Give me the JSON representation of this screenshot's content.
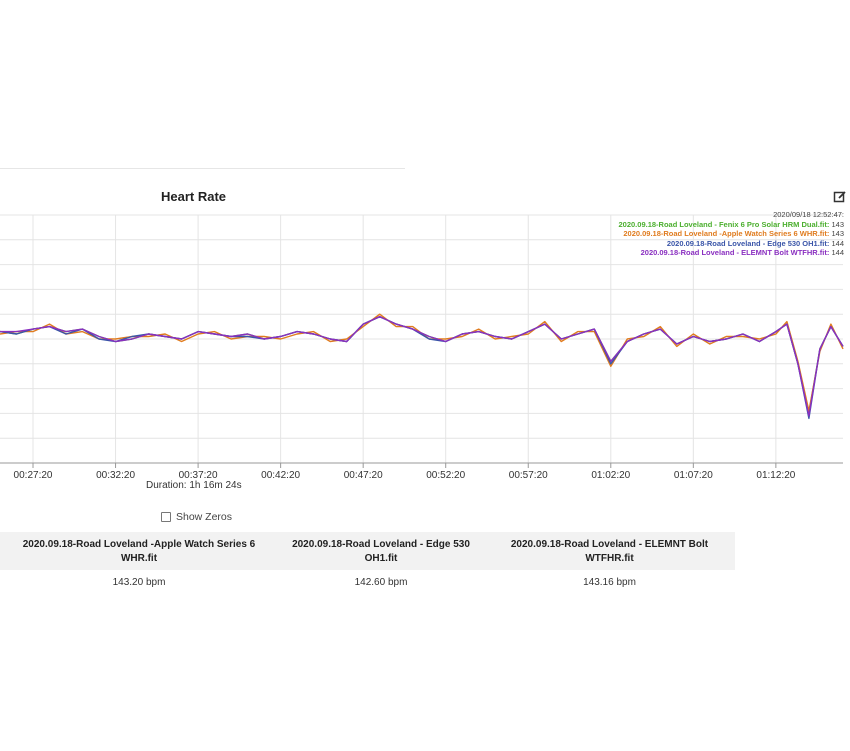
{
  "title": "Heart Rate",
  "legend": {
    "timestamp": "2020/09/18 12:52:47:",
    "entries": [
      {
        "label": "2020.09.18-Road Loveland - Fenix 6 Pro Solar HRM Dual.fit:",
        "value": "143",
        "color": "#4caf2f"
      },
      {
        "label": "2020.09.18-Road Loveland -Apple Watch Series 6 WHR.fit:",
        "value": "143",
        "color": "#e07c1f"
      },
      {
        "label": "2020.09.18-Road Loveland - Edge 530 OH1.fit:",
        "value": "144",
        "color": "#3a55a8"
      },
      {
        "label": "2020.09.18-Road Loveland - ELEMNT Bolt WTFHR.fit:",
        "value": "144",
        "color": "#8a2fc0"
      }
    ]
  },
  "duration": "Duration: 1h 16m 24s",
  "show_zeros": {
    "label": "Show Zeros",
    "checked": false
  },
  "table": {
    "headers": [
      [
        "2020.09.18-Road Loveland -Apple Watch Series 6",
        "WHR.fit"
      ],
      [
        "2020.09.18-Road Loveland - Edge 530",
        "OH1.fit"
      ],
      [
        "2020.09.18-Road Loveland - ELEMNT Bolt",
        "WTFHR.fit"
      ]
    ],
    "values": [
      "143.20 bpm",
      "142.60 bpm",
      "143.16 bpm"
    ]
  },
  "chart_data": {
    "type": "line",
    "title": "Heart Rate",
    "xlabel": "",
    "ylabel": "",
    "x_ticks": [
      "00:27:20",
      "00:32:20",
      "00:37:20",
      "00:42:20",
      "00:47:20",
      "00:52:20",
      "00:57:20",
      "01:02:20",
      "01:07:20",
      "01:12:20"
    ],
    "x_range": [
      "00:25:20",
      "01:16:24"
    ],
    "y_range": [
      90,
      190
    ],
    "grid": true,
    "legend_position": "top-right",
    "x": [
      "00:25:20",
      "00:26:20",
      "00:27:20",
      "00:28:20",
      "00:29:20",
      "00:30:20",
      "00:31:20",
      "00:32:20",
      "00:33:20",
      "00:34:20",
      "00:35:20",
      "00:36:20",
      "00:37:20",
      "00:38:20",
      "00:39:20",
      "00:40:20",
      "00:41:20",
      "00:42:20",
      "00:43:20",
      "00:44:20",
      "00:45:20",
      "00:46:20",
      "00:47:20",
      "00:48:20",
      "00:49:20",
      "00:50:20",
      "00:51:20",
      "00:52:20",
      "00:53:20",
      "00:54:20",
      "00:55:20",
      "00:56:20",
      "00:57:20",
      "00:58:20",
      "00:59:20",
      "01:00:20",
      "01:01:20",
      "01:02:20",
      "01:03:20",
      "01:04:20",
      "01:05:20",
      "01:06:20",
      "01:07:20",
      "01:08:20",
      "01:09:20",
      "01:10:20",
      "01:11:20",
      "01:12:20",
      "01:13:00",
      "01:13:40",
      "01:14:20",
      "01:15:00",
      "01:15:40",
      "01:16:24"
    ],
    "series": [
      {
        "name": "2020.09.18-Road Loveland - Fenix 6 Pro Solar HRM Dual.fit",
        "color": "#4caf2f",
        "values": [
          143,
          142,
          144,
          145,
          143,
          144,
          141,
          139,
          140,
          142,
          141,
          140,
          143,
          142,
          141,
          142,
          140,
          141,
          143,
          142,
          140,
          139,
          146,
          149,
          146,
          144,
          141,
          139,
          142,
          143,
          141,
          140,
          143,
          146,
          140,
          142,
          144,
          131,
          139,
          142,
          144,
          138,
          141,
          139,
          140,
          142,
          139,
          143,
          146,
          130,
          110,
          136,
          145,
          137
        ]
      },
      {
        "name": "2020.09.18-Road Loveland -Apple Watch Series 6 WHR.fit",
        "color": "#e07c1f",
        "values": [
          142,
          143,
          143,
          146,
          142,
          143,
          140,
          140,
          141,
          141,
          142,
          139,
          142,
          143,
          140,
          141,
          141,
          140,
          142,
          143,
          139,
          140,
          145,
          150,
          145,
          145,
          140,
          140,
          141,
          144,
          140,
          141,
          142,
          147,
          139,
          143,
          143,
          129,
          140,
          141,
          145,
          137,
          142,
          138,
          141,
          141,
          140,
          142,
          147,
          131,
          111,
          135,
          146,
          136
        ]
      },
      {
        "name": "2020.09.18-Road Loveland - Edge 530 OH1.fit",
        "color": "#3a55a8",
        "values": [
          143,
          142,
          144,
          145,
          142,
          144,
          140,
          139,
          141,
          142,
          141,
          140,
          143,
          142,
          141,
          141,
          140,
          141,
          143,
          142,
          140,
          139,
          146,
          149,
          146,
          144,
          140,
          139,
          142,
          143,
          141,
          140,
          143,
          146,
          140,
          142,
          144,
          130,
          139,
          142,
          144,
          138,
          141,
          139,
          140,
          142,
          139,
          143,
          146,
          130,
          108,
          136,
          145,
          137
        ]
      },
      {
        "name": "2020.09.18-Road Loveland - ELEMNT Bolt WTFHR.fit",
        "color": "#8a2fc0",
        "values": [
          143,
          143,
          144,
          145,
          143,
          144,
          141,
          139,
          140,
          142,
          141,
          140,
          143,
          142,
          141,
          142,
          140,
          141,
          143,
          142,
          140,
          139,
          146,
          149,
          146,
          144,
          141,
          139,
          142,
          143,
          141,
          140,
          143,
          146,
          140,
          142,
          144,
          131,
          139,
          142,
          144,
          138,
          141,
          139,
          140,
          142,
          139,
          143,
          146,
          130,
          109,
          136,
          145,
          137
        ]
      }
    ]
  }
}
